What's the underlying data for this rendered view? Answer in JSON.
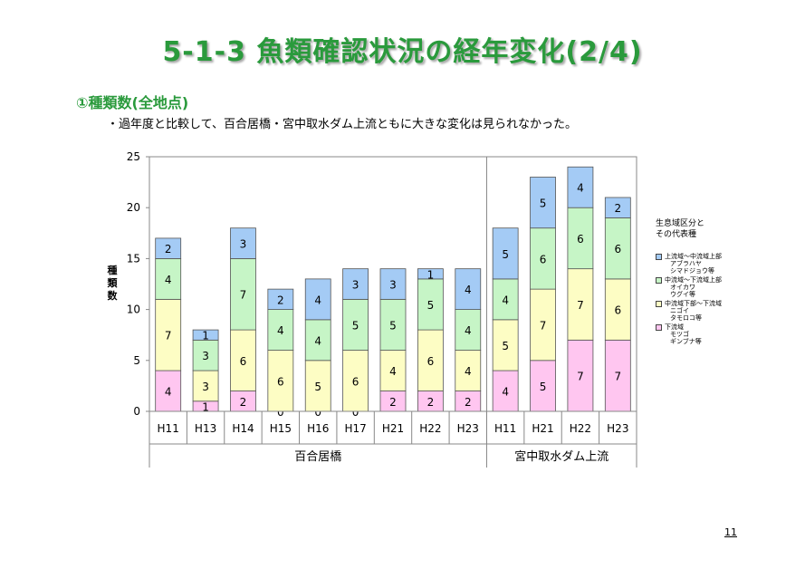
{
  "title": "5-1-3  魚類確認状況の経年変化(2/4)",
  "section": "①種類数(全地点)",
  "bullet": "・過年度と比較して、百合居橋・宮中取水ダム上流ともに大きな変化は見られなかった。",
  "page_number": "11",
  "colors": {
    "lower": "#ffc6f0",
    "mid_lower": "#fdfdc4",
    "lower_mid": "#c6f5c6",
    "upper": "#a4cbf5",
    "title": "#2a9a3c"
  },
  "legend": {
    "title_line1": "生息域区分と",
    "title_line2": "その代表種",
    "entries": [
      {
        "label": "上流域～中流域上部",
        "species": [
          "アブラハヤ",
          "シマドジョウ等"
        ]
      },
      {
        "label": "中流域～下流域上部",
        "species": [
          "オイカワ",
          "ウグイ等"
        ]
      },
      {
        "label": "中流域下部～下流域",
        "species": [
          "ニゴイ",
          "タモロコ等"
        ]
      },
      {
        "label": "下流域",
        "species": [
          "モツゴ",
          "ギンブナ等"
        ]
      }
    ]
  },
  "chart_data": {
    "type": "bar",
    "stacked": true,
    "ylabel": "種類数",
    "ylim": [
      0,
      25
    ],
    "yticks": [
      0,
      5,
      10,
      15,
      20,
      25
    ],
    "categories": [
      "H11",
      "H13",
      "H14",
      "H15",
      "H16",
      "H17",
      "H21",
      "H22",
      "H23",
      "H11",
      "H21",
      "H22",
      "H23"
    ],
    "groups": [
      {
        "name": "百合居橋",
        "count": 9
      },
      {
        "name": "宮中取水ダム上流",
        "count": 4
      }
    ],
    "series": [
      {
        "name": "下流域",
        "values": [
          4,
          1,
          2,
          0,
          0,
          0,
          2,
          2,
          2,
          4,
          5,
          7,
          7
        ]
      },
      {
        "name": "中流域下部～下流域",
        "values": [
          7,
          3,
          6,
          6,
          5,
          6,
          4,
          6,
          4,
          5,
          7,
          7,
          6
        ]
      },
      {
        "name": "中流域～下流域上部",
        "values": [
          4,
          3,
          7,
          4,
          4,
          5,
          5,
          5,
          4,
          4,
          6,
          6,
          6
        ]
      },
      {
        "name": "上流域～中流域上部",
        "values": [
          2,
          1,
          3,
          2,
          4,
          3,
          3,
          1,
          4,
          5,
          5,
          4,
          2
        ]
      }
    ],
    "grid": false,
    "legend_position": "right"
  }
}
